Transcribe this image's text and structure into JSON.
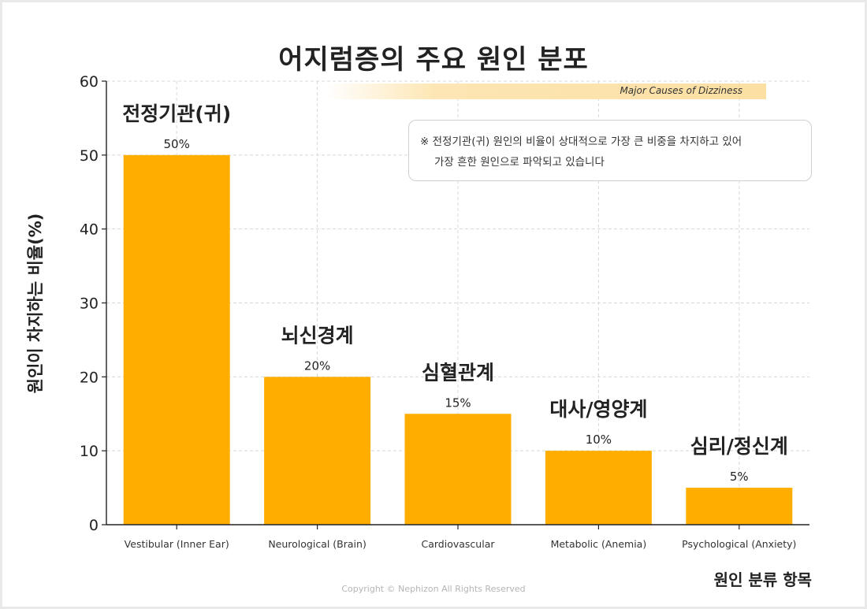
{
  "footer": "Copyright © Nephizon All Rights Reserved",
  "note": {
    "line1": "※ 전정기관(귀) 원인의 비율이 상대적으로 가장 큰 비중을 차지하고 있어",
    "line2": "가장 흔한 원인으로 파악되고 있습니다"
  },
  "colors": {
    "bar": "#FFAE00",
    "grid": "#d8d8d8",
    "axis": "#222222"
  },
  "chart_data": {
    "type": "bar",
    "title": "어지럼증의 주요 원인 분포",
    "subtitle": "Major Causes of Dizziness",
    "xlabel": "원인 분류 항목",
    "ylabel": "원인이 차지하는 비율(%)",
    "categories": [
      "Vestibular (Inner Ear)",
      "Neurological (Brain)",
      "Cardiovascular",
      "Metabolic (Anemia)",
      "Psychological (Anxiety)"
    ],
    "category_labels_kr": [
      "전정기관(귀)",
      "뇌신경계",
      "심혈관계",
      "대사/영양계",
      "심리/정신계"
    ],
    "values": [
      50,
      20,
      15,
      10,
      5
    ],
    "value_labels": [
      "50%",
      "20%",
      "15%",
      "10%",
      "5%"
    ],
    "ylim": [
      0,
      60
    ],
    "yticks": [
      0,
      10,
      20,
      30,
      40,
      50,
      60
    ],
    "grid": true
  }
}
